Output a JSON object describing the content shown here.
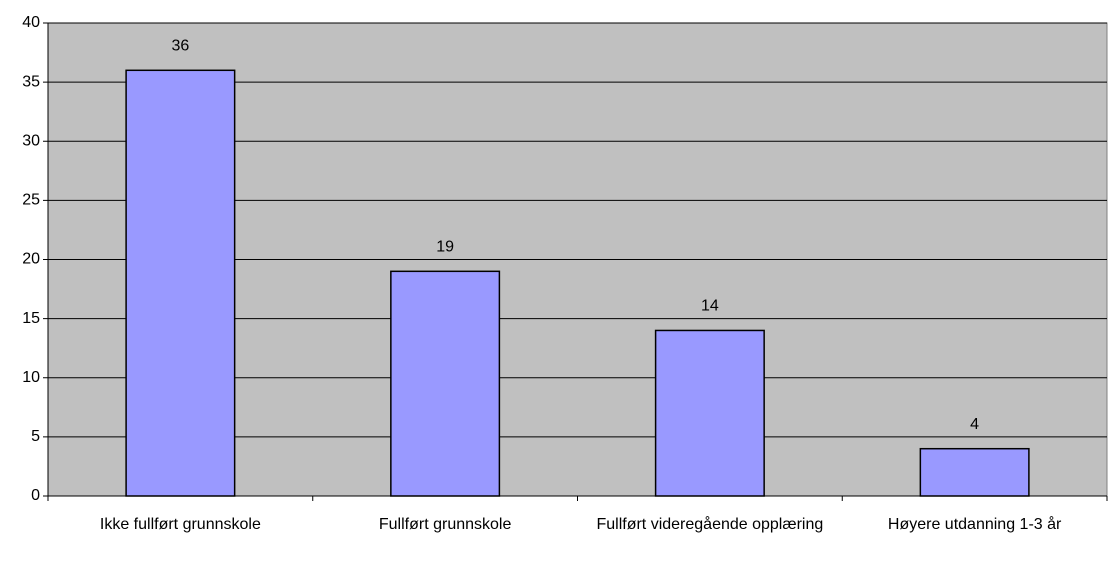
{
  "chart_data": {
    "type": "bar",
    "categories": [
      "Ikke fullført grunnskole",
      "Fullført grunnskole",
      "Fullført videregående opplæring",
      "Høyere utdanning 1-3 år"
    ],
    "values": [
      36,
      19,
      14,
      4
    ],
    "color": "#9999ff",
    "plot_background": "#c0c0c0",
    "ylim": [
      0,
      40
    ],
    "yticks": [
      0,
      5,
      10,
      15,
      20,
      25,
      30,
      35,
      40
    ],
    "grid": true
  }
}
